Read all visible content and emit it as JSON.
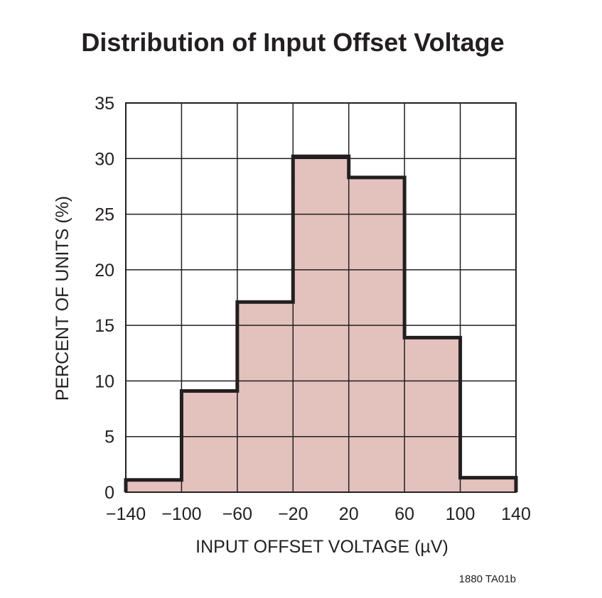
{
  "chart_data": {
    "type": "bar",
    "title": "Distribution of Input Offset Voltage",
    "xlabel": "INPUT OFFSET VOLTAGE (µV)",
    "ylabel": "PERCENT OF UNITS (%)",
    "bin_edges": [
      -140,
      -100,
      -60,
      -20,
      20,
      60,
      100,
      140
    ],
    "values": [
      1.1,
      9.1,
      17.1,
      30.2,
      28.3,
      13.9,
      1.3
    ],
    "xlim": [
      -140,
      140
    ],
    "ylim": [
      0,
      35
    ],
    "xticks": [
      "−140",
      "−100",
      "−60",
      "−20",
      "20",
      "60",
      "100",
      "140"
    ],
    "yticks": [
      "0",
      "5",
      "10",
      "15",
      "20",
      "25",
      "30",
      "35"
    ],
    "grid": true,
    "colors": {
      "fill": "#e3c1bd",
      "outline": "#231f20",
      "text": "#231f20"
    },
    "footnote": "1880 TA01b"
  }
}
